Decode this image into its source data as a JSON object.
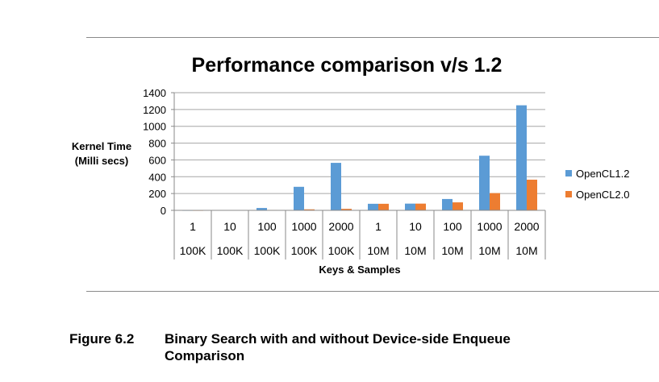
{
  "chart_data": {
    "type": "bar",
    "title": "Performance comparison v/s 1.2",
    "ylabel_line1": "Kernel Time",
    "ylabel_line2": "(Milli secs)",
    "xlabel": "Keys & Samples",
    "ylim": [
      0,
      1400
    ],
    "yticks": [
      0,
      200,
      400,
      600,
      800,
      1000,
      1200,
      1400
    ],
    "grid": true,
    "legend_position": "right",
    "categories": [
      {
        "keys": "1",
        "samples": "100K"
      },
      {
        "keys": "10",
        "samples": "100K"
      },
      {
        "keys": "100",
        "samples": "100K"
      },
      {
        "keys": "1000",
        "samples": "100K"
      },
      {
        "keys": "2000",
        "samples": "100K"
      },
      {
        "keys": "1",
        "samples": "10M"
      },
      {
        "keys": "10",
        "samples": "10M"
      },
      {
        "keys": "100",
        "samples": "10M"
      },
      {
        "keys": "1000",
        "samples": "10M"
      },
      {
        "keys": "2000",
        "samples": "10M"
      }
    ],
    "series": [
      {
        "name": "OpenCL1.2",
        "color": "#5B9BD5",
        "values": [
          2,
          4,
          28,
          280,
          565,
          78,
          80,
          135,
          650,
          1250
        ]
      },
      {
        "name": "OpenCL2.0",
        "color": "#ED7D31",
        "values": [
          2,
          3,
          5,
          12,
          18,
          78,
          80,
          95,
          205,
          365
        ]
      }
    ]
  },
  "caption": {
    "number": "Figure 6.2",
    "text_line1": "Binary Search with and without Device-side Enqueue",
    "text_line2": "Comparison"
  }
}
